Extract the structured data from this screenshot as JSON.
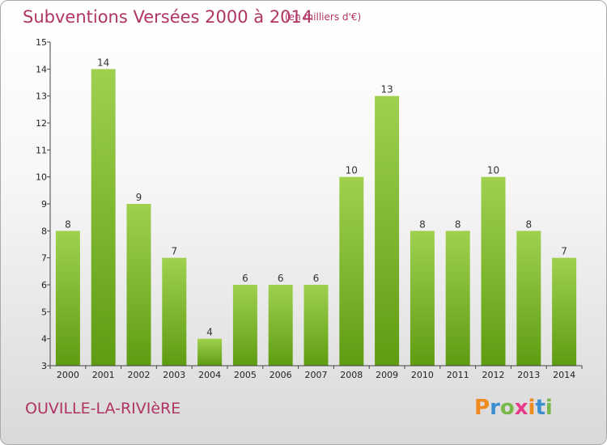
{
  "header": {
    "title": "Subventions Versées 2000 à 2014",
    "unit": "(en milliers d'€)"
  },
  "footer": {
    "commune": "OUVILLE-LA-RIVIèRE",
    "logo": "Proxiti"
  },
  "colors": {
    "bar_light": "#9fd14f",
    "bar_dark": "#5f9c12",
    "title": "#b03464",
    "logo_letters": [
      "#f08a1c",
      "#3b8fd0",
      "#79b84a",
      "#e73b8a",
      "#f08a1c",
      "#3b8fd0",
      "#79b84a"
    ]
  },
  "chart_data": {
    "type": "bar",
    "title": "Subventions Versées 2000 à 2014",
    "categories": [
      "2000",
      "2001",
      "2002",
      "2003",
      "2004",
      "2005",
      "2006",
      "2007",
      "2008",
      "2009",
      "2010",
      "2011",
      "2012",
      "2013",
      "2014"
    ],
    "values": [
      8,
      14,
      9,
      7,
      4,
      6,
      6,
      6,
      10,
      13,
      8,
      8,
      10,
      8,
      7
    ],
    "ylim": [
      3,
      15
    ],
    "yticks": [
      3,
      4,
      5,
      6,
      7,
      8,
      9,
      10,
      11,
      12,
      13,
      14,
      15
    ],
    "grid": false,
    "data_labels": true
  }
}
